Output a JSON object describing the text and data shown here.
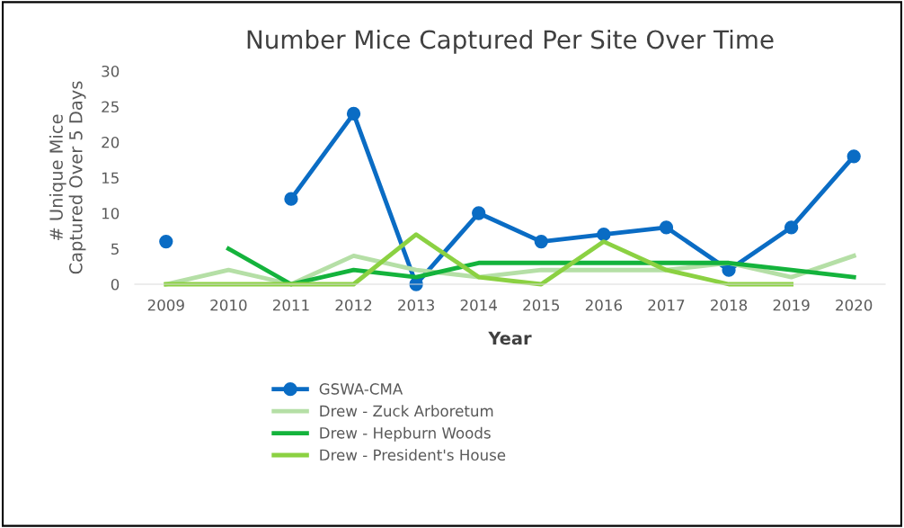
{
  "chart_data": {
    "type": "line",
    "title": "Number Mice Captured Per Site Over Time",
    "xlabel": "Year",
    "ylabel": "# Unique Mice\nCaptured Over 5 Days",
    "categories": [
      "2009",
      "2010",
      "2011",
      "2012",
      "2013",
      "2014",
      "2015",
      "2016",
      "2017",
      "2018",
      "2019",
      "2020"
    ],
    "series": [
      {
        "name": "GSWA-CMA",
        "color": "#0a6cc4",
        "marker": "circle",
        "values": [
          6,
          null,
          12,
          24,
          0,
          10,
          6,
          7,
          8,
          2,
          8,
          18
        ]
      },
      {
        "name": "Drew - Zuck Arboretum",
        "color": "#b5dfa6",
        "marker": "none",
        "values": [
          0,
          2,
          0,
          4,
          2,
          1,
          2,
          2,
          2,
          3,
          1,
          4
        ]
      },
      {
        "name": "Drew - Hepburn Woods",
        "color": "#14b33c",
        "marker": "none",
        "values": [
          null,
          5,
          0,
          2,
          1,
          3,
          3,
          3,
          3,
          3,
          2,
          1
        ]
      },
      {
        "name": "Drew - President's House",
        "color": "#8bd142",
        "marker": "none",
        "values": [
          0,
          0,
          0,
          0,
          7,
          1,
          0,
          6,
          2,
          0,
          0,
          null
        ]
      }
    ],
    "ylim": [
      0,
      30
    ],
    "yticks": [
      0,
      5,
      10,
      15,
      20,
      25,
      30
    ],
    "grid": false,
    "legend": "bottom",
    "line_style": "solid"
  }
}
